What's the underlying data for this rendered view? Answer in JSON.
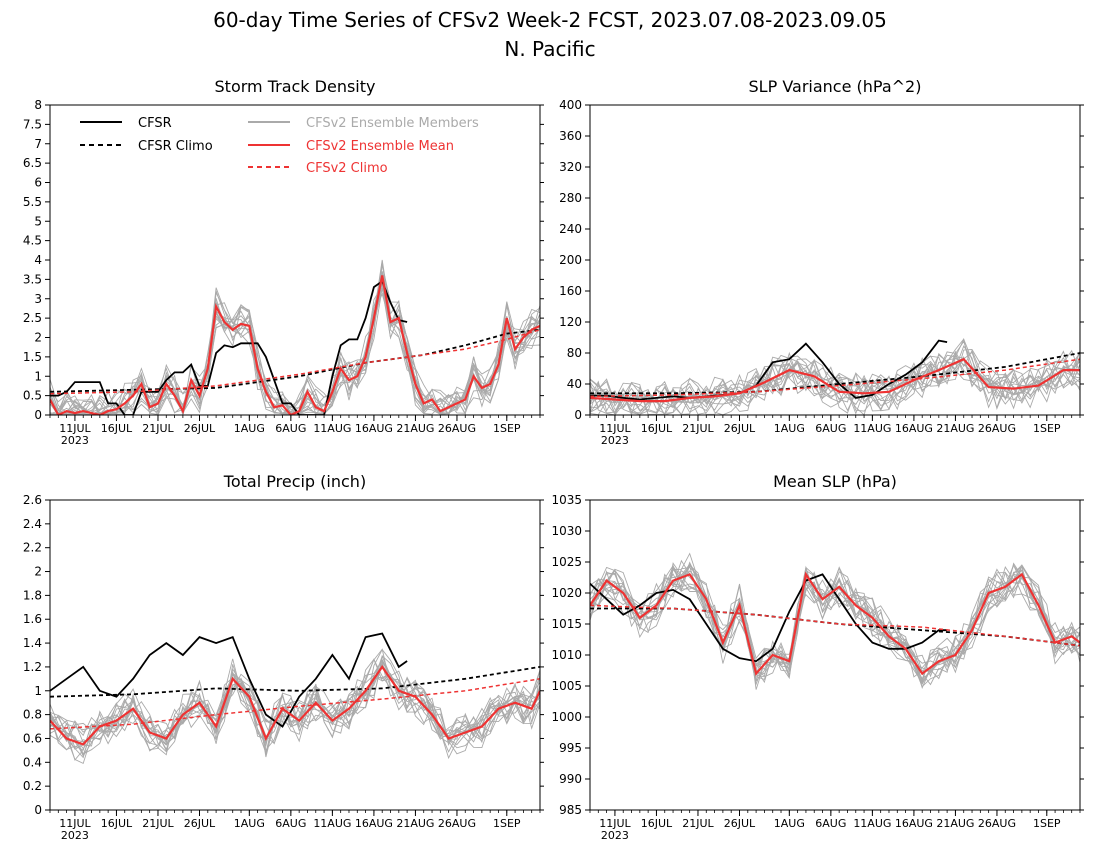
{
  "title_line1": "60-day Time Series of CFSv2 Week-2 FCST, 2023.07.08-2023.09.05",
  "title_line2": "N. Pacific",
  "x_ticks": [
    {
      "day": 3,
      "label": "11JUL"
    },
    {
      "day": 8,
      "label": "16JUL"
    },
    {
      "day": 13,
      "label": "21JUL"
    },
    {
      "day": 18,
      "label": "26JUL"
    },
    {
      "day": 24,
      "label": "1AUG"
    },
    {
      "day": 29,
      "label": "6AUG"
    },
    {
      "day": 34,
      "label": "11AUG"
    },
    {
      "day": 39,
      "label": "16AUG"
    },
    {
      "day": 44,
      "label": "21AUG"
    },
    {
      "day": 49,
      "label": "26AUG"
    },
    {
      "day": 55,
      "label": "1SEP"
    }
  ],
  "x_year_label": "2023",
  "legend": {
    "cfsr": "CFSR",
    "cfsr_climo": "CFSR Climo",
    "members": "CFSv2 Ensemble Members",
    "mean": "CFSv2 Ensemble Mean",
    "cfsv2_climo": "CFSv2 Climo"
  },
  "colors": {
    "cfsr": "#000000",
    "members": "#aaaaaa",
    "mean": "#ee3333",
    "cfsv2_climo": "#ee3333"
  },
  "chart_data": [
    {
      "type": "line",
      "title": "Storm Track Density",
      "ylim": [
        0,
        8
      ],
      "yticks": [
        "0",
        "0.5",
        "1",
        "1.5",
        "2",
        "2.5",
        "3",
        "3.5",
        "4",
        "4.5",
        "5",
        "5.5",
        "6",
        "6.5",
        "7",
        "7.5",
        "8"
      ],
      "x_days": [
        0,
        59
      ],
      "series": [
        {
          "name": "CFSR",
          "x": [
            0,
            1,
            2,
            3,
            4,
            5,
            6,
            7,
            8,
            9,
            10,
            11,
            12,
            13,
            14,
            15,
            16,
            17,
            18,
            19,
            20,
            21,
            22,
            23,
            24,
            25,
            26,
            27,
            28,
            29,
            30,
            31,
            32,
            33,
            34,
            35,
            36,
            37,
            38,
            39,
            40,
            41,
            42,
            43
          ],
          "values": [
            0.5,
            0.5,
            0.6,
            0.85,
            0.85,
            0.85,
            0.85,
            0.3,
            0.3,
            0.0,
            0.0,
            0.6,
            0.6,
            0.6,
            0.9,
            1.1,
            1.1,
            1.3,
            0.75,
            0.75,
            1.6,
            1.8,
            1.75,
            1.85,
            1.85,
            1.85,
            1.5,
            0.9,
            0.3,
            0.3,
            0.0,
            0.0,
            0.0,
            0.0,
            1.0,
            1.8,
            1.95,
            1.95,
            2.5,
            3.3,
            3.45,
            2.9,
            2.45,
            2.4
          ]
        },
        {
          "name": "CFSR Climo",
          "x": [
            0,
            10,
            20,
            30,
            38,
            45,
            50,
            55,
            59
          ],
          "values": [
            0.6,
            0.65,
            0.7,
            1.0,
            1.35,
            1.55,
            1.8,
            2.1,
            2.2
          ]
        },
        {
          "name": "CFSv2 Ensemble Mean",
          "x": [
            0,
            1,
            2,
            3,
            4,
            5,
            6,
            7,
            8,
            9,
            10,
            11,
            12,
            13,
            14,
            15,
            16,
            17,
            18,
            19,
            20,
            21,
            22,
            23,
            24,
            25,
            26,
            27,
            28,
            29,
            30,
            31,
            32,
            33,
            34,
            35,
            36,
            37,
            38,
            39,
            40,
            41,
            42,
            43,
            44,
            45,
            46,
            47,
            48,
            49,
            50,
            51,
            52,
            53,
            54,
            55,
            56,
            57,
            58,
            59
          ],
          "values": [
            0.4,
            0.0,
            0.1,
            0.05,
            0.1,
            0.05,
            0.0,
            0.1,
            0.15,
            0.3,
            0.5,
            0.8,
            0.2,
            0.3,
            0.8,
            0.5,
            0.1,
            0.9,
            0.5,
            1.2,
            2.8,
            2.4,
            2.2,
            2.35,
            2.3,
            1.2,
            0.6,
            0.2,
            0.25,
            0.0,
            0.1,
            0.6,
            0.2,
            0.1,
            0.6,
            1.2,
            0.9,
            1.0,
            1.5,
            2.5,
            3.6,
            2.4,
            2.5,
            1.6,
            0.8,
            0.3,
            0.4,
            0.1,
            0.2,
            0.3,
            0.4,
            1.0,
            0.7,
            0.8,
            1.3,
            2.5,
            1.7,
            2.0,
            2.2,
            2.3
          ]
        },
        {
          "name": "CFSv2 Climo",
          "x": [
            0,
            10,
            20,
            30,
            38,
            45,
            50,
            55,
            59
          ],
          "values": [
            0.55,
            0.6,
            0.75,
            1.05,
            1.35,
            1.55,
            1.7,
            1.95,
            2.2
          ]
        }
      ]
    },
    {
      "type": "line",
      "title": "SLP Variance (hPa^2)",
      "ylim": [
        0,
        400
      ],
      "yticks": [
        "0",
        "40",
        "80",
        "120",
        "160",
        "200",
        "240",
        "280",
        "320",
        "360",
        "400"
      ],
      "x_days": [
        0,
        59
      ],
      "series": [
        {
          "name": "CFSR",
          "x": [
            0,
            2,
            4,
            6,
            8,
            10,
            12,
            14,
            16,
            18,
            20,
            22,
            24,
            26,
            28,
            30,
            32,
            34,
            36,
            38,
            40,
            42,
            43
          ],
          "values": [
            25,
            25,
            22,
            20,
            22,
            24,
            22,
            24,
            26,
            28,
            38,
            68,
            72,
            92,
            68,
            40,
            22,
            26,
            40,
            52,
            68,
            96,
            94
          ]
        },
        {
          "name": "CFSR Climo",
          "x": [
            0,
            10,
            20,
            30,
            40,
            50,
            59
          ],
          "values": [
            28,
            28,
            30,
            40,
            50,
            62,
            80
          ]
        },
        {
          "name": "CFSv2 Ensemble Mean",
          "x": [
            0,
            3,
            6,
            9,
            12,
            15,
            18,
            21,
            24,
            27,
            30,
            33,
            36,
            39,
            42,
            45,
            48,
            51,
            54,
            57,
            59
          ],
          "values": [
            22,
            20,
            18,
            18,
            22,
            24,
            28,
            42,
            58,
            50,
            30,
            28,
            30,
            45,
            58,
            72,
            36,
            34,
            38,
            58,
            58
          ]
        },
        {
          "name": "CFSv2 Climo",
          "x": [
            0,
            10,
            20,
            30,
            40,
            50,
            59
          ],
          "values": [
            24,
            26,
            30,
            38,
            47,
            58,
            72
          ]
        }
      ]
    },
    {
      "type": "line",
      "title": "Total Precip (inch)",
      "ylim": [
        0,
        2.6
      ],
      "yticks": [
        "0",
        "0.2",
        "0.4",
        "0.6",
        "0.8",
        "1",
        "1.2",
        "1.4",
        "1.6",
        "1.8",
        "2",
        "2.2",
        "2.4",
        "2.6"
      ],
      "x_days": [
        0,
        59
      ],
      "series": [
        {
          "name": "CFSR",
          "x": [
            0,
            2,
            4,
            6,
            8,
            10,
            12,
            14,
            16,
            18,
            20,
            22,
            24,
            26,
            28,
            30,
            32,
            34,
            36,
            38,
            40,
            42,
            43
          ],
          "values": [
            1.0,
            1.1,
            1.2,
            1.0,
            0.95,
            1.1,
            1.3,
            1.4,
            1.3,
            1.45,
            1.4,
            1.45,
            1.1,
            0.8,
            0.7,
            0.95,
            1.1,
            1.3,
            1.1,
            1.45,
            1.48,
            1.2,
            1.25
          ]
        },
        {
          "name": "CFSR Climo",
          "x": [
            0,
            10,
            20,
            30,
            40,
            50,
            59
          ],
          "values": [
            0.95,
            0.97,
            1.02,
            1.0,
            1.02,
            1.1,
            1.2
          ]
        },
        {
          "name": "CFSv2 Ensemble Mean",
          "x": [
            0,
            2,
            4,
            6,
            8,
            10,
            12,
            14,
            16,
            18,
            20,
            22,
            24,
            26,
            28,
            30,
            32,
            34,
            36,
            38,
            40,
            42,
            44,
            46,
            48,
            50,
            52,
            54,
            56,
            58,
            59
          ],
          "values": [
            0.75,
            0.6,
            0.55,
            0.7,
            0.75,
            0.85,
            0.65,
            0.6,
            0.8,
            0.9,
            0.7,
            1.1,
            0.95,
            0.6,
            0.85,
            0.75,
            0.9,
            0.75,
            0.85,
            1.0,
            1.2,
            1.0,
            0.95,
            0.8,
            0.6,
            0.65,
            0.7,
            0.85,
            0.9,
            0.85,
            1.0
          ]
        },
        {
          "name": "CFSv2 Climo",
          "x": [
            0,
            10,
            20,
            30,
            40,
            50,
            59
          ],
          "values": [
            0.68,
            0.72,
            0.8,
            0.87,
            0.93,
            1.0,
            1.1
          ]
        }
      ]
    },
    {
      "type": "line",
      "title": "Mean SLP (hPa)",
      "ylim": [
        985,
        1035
      ],
      "yticks": [
        "985",
        "990",
        "995",
        "1000",
        "1005",
        "1010",
        "1015",
        "1020",
        "1025",
        "1030",
        "1035"
      ],
      "x_days": [
        0,
        59
      ],
      "series": [
        {
          "name": "CFSR",
          "x": [
            0,
            2,
            4,
            6,
            8,
            10,
            12,
            14,
            16,
            18,
            20,
            22,
            24,
            26,
            28,
            30,
            32,
            34,
            36,
            38,
            40,
            42,
            43
          ],
          "values": [
            1021.5,
            1019,
            1016.5,
            1018,
            1020,
            1020.5,
            1019,
            1015,
            1011,
            1009.5,
            1009,
            1011,
            1017,
            1022,
            1023,
            1019,
            1015,
            1012,
            1011,
            1011,
            1012,
            1014,
            1014
          ]
        },
        {
          "name": "CFSR Climo",
          "x": [
            0,
            10,
            20,
            30,
            40,
            50,
            59
          ],
          "values": [
            1017.5,
            1017.5,
            1016.5,
            1015,
            1014,
            1013,
            1011.5
          ]
        },
        {
          "name": "CFSv2 Ensemble Mean",
          "x": [
            0,
            2,
            4,
            6,
            8,
            10,
            12,
            14,
            16,
            18,
            20,
            22,
            24,
            26,
            28,
            30,
            32,
            34,
            36,
            38,
            40,
            42,
            44,
            46,
            48,
            50,
            52,
            54,
            56,
            58,
            59
          ],
          "values": [
            1018,
            1022,
            1020,
            1016,
            1018,
            1022,
            1023,
            1019,
            1012,
            1018,
            1007,
            1010,
            1009,
            1023,
            1019,
            1021,
            1018,
            1016,
            1013,
            1011,
            1007,
            1009,
            1010,
            1014,
            1020,
            1021,
            1023,
            1018,
            1012,
            1013,
            1012
          ]
        },
        {
          "name": "CFSv2 Climo",
          "x": [
            0,
            10,
            20,
            30,
            40,
            50,
            59
          ],
          "values": [
            1018,
            1017.5,
            1016.5,
            1015,
            1014.5,
            1013,
            1011.5
          ]
        }
      ]
    }
  ]
}
